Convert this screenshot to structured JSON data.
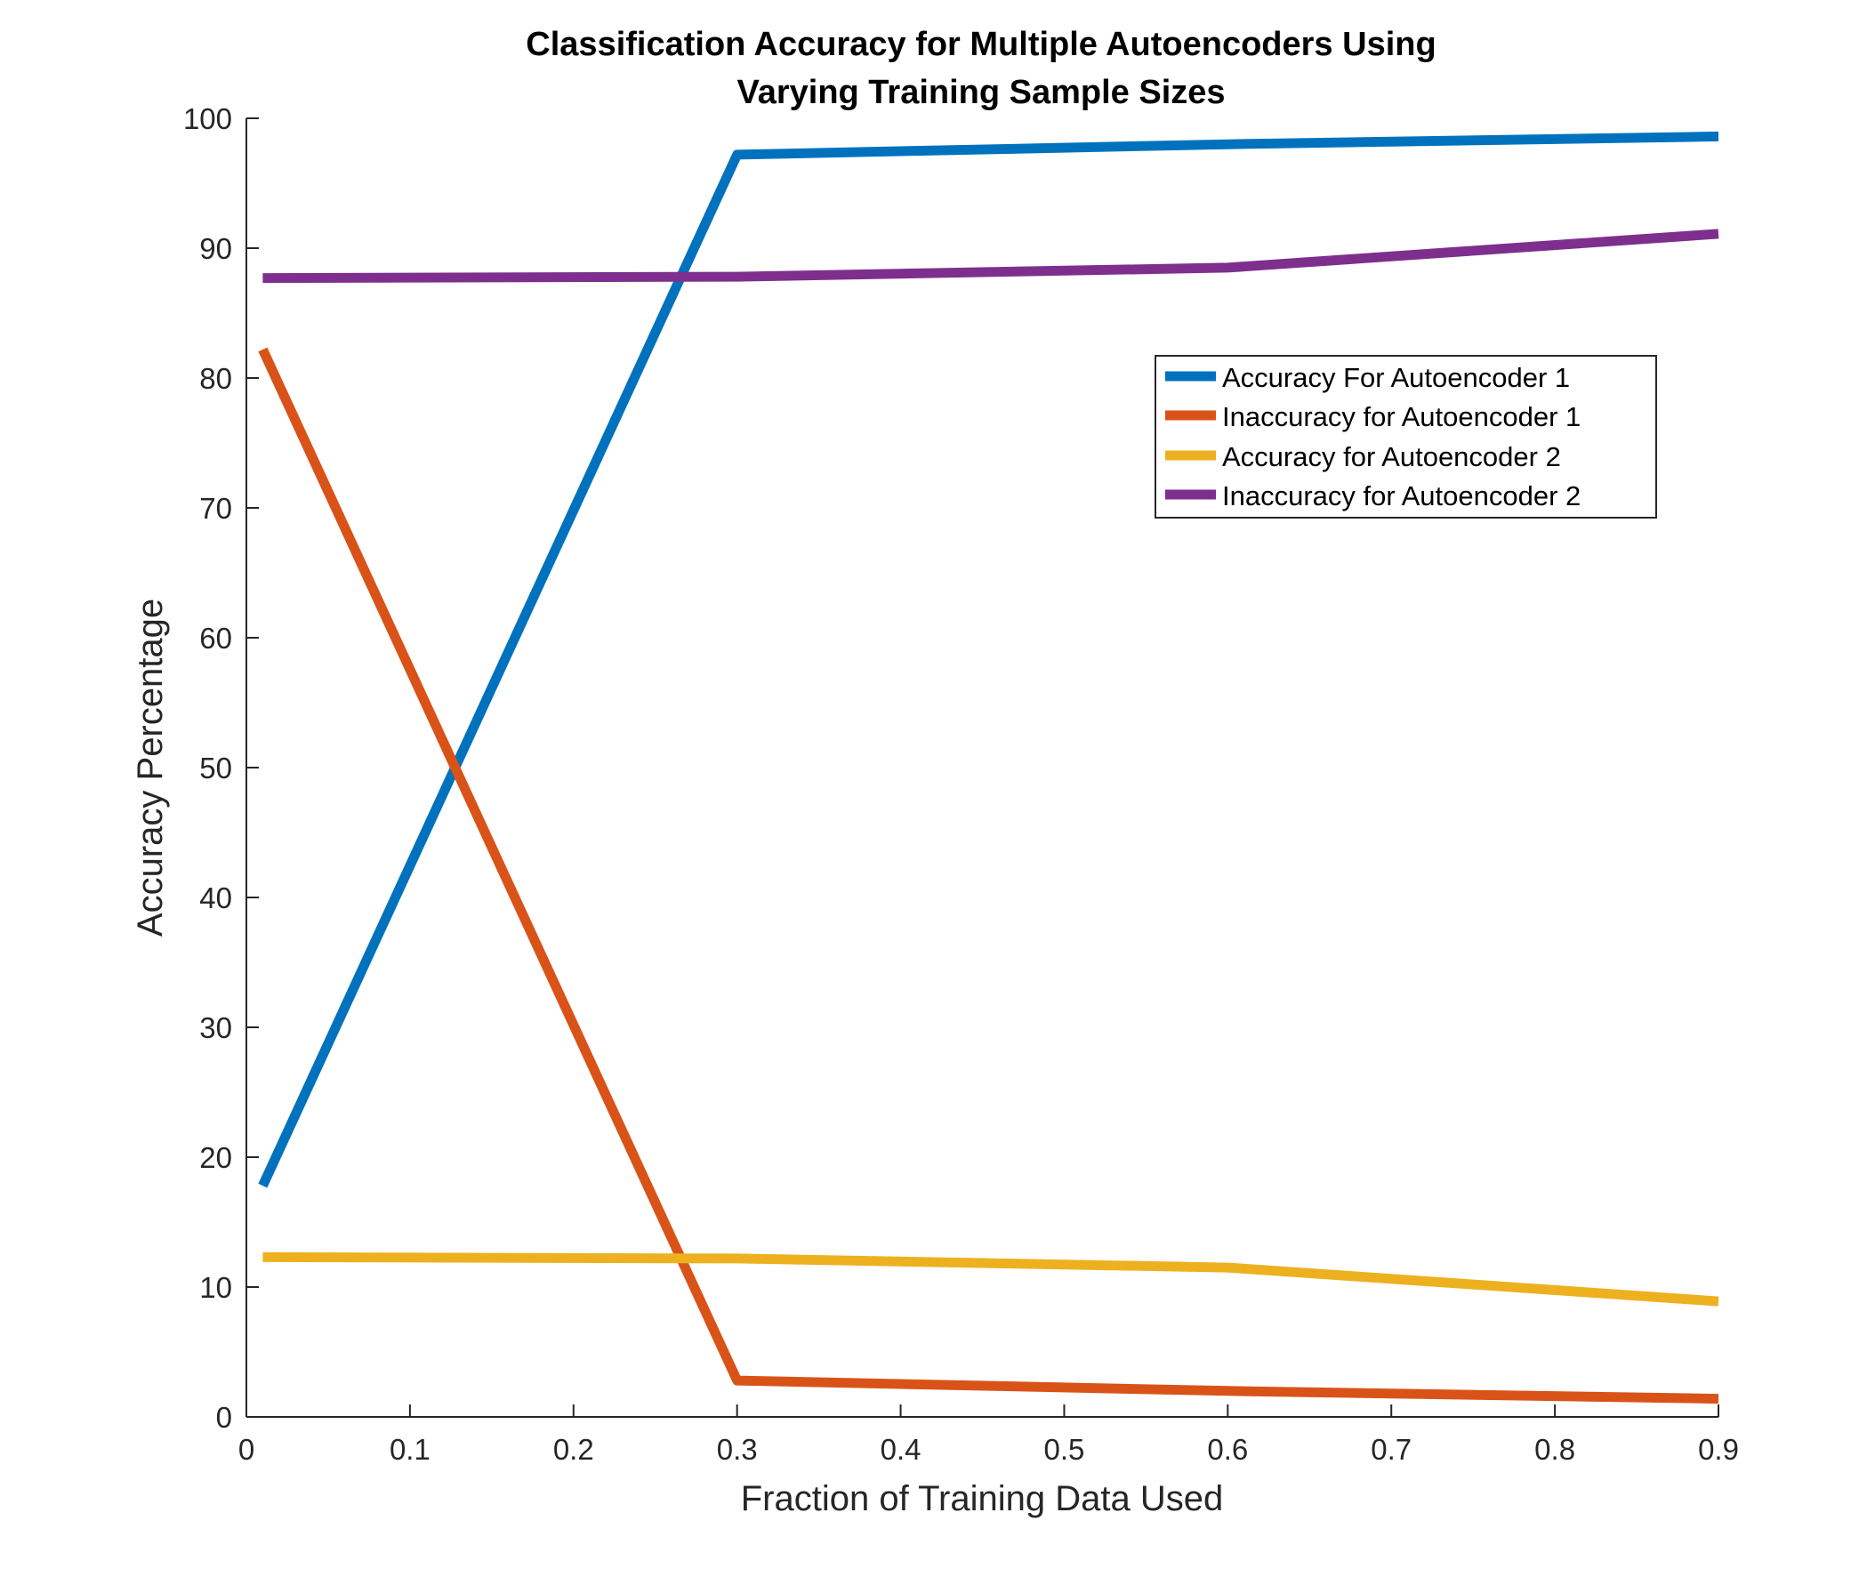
{
  "chart_data": {
    "type": "line",
    "title_lines": [
      "Classification Accuracy for Multiple Autoencoders Using",
      "Varying Training Sample Sizes"
    ],
    "xlabel": "Fraction of Training Data Used",
    "ylabel": "Accuracy Percentage",
    "xlim": [
      0,
      0.9
    ],
    "ylim": [
      0,
      100
    ],
    "xticks": [
      0,
      0.1,
      0.2,
      0.3,
      0.4,
      0.5,
      0.6,
      0.7,
      0.8,
      0.9
    ],
    "xtick_labels": [
      "0",
      "0.1",
      "0.2",
      "0.3",
      "0.4",
      "0.5",
      "0.6",
      "0.7",
      "0.8",
      "0.9"
    ],
    "yticks": [
      0,
      10,
      20,
      30,
      40,
      50,
      60,
      70,
      80,
      90,
      100
    ],
    "ytick_labels": [
      "0",
      "10",
      "20",
      "30",
      "40",
      "50",
      "60",
      "70",
      "80",
      "90",
      "100"
    ],
    "grid": false,
    "legend_position": "upper-right",
    "series": [
      {
        "name": "Accuracy For Autoencoder 1",
        "color": "#0072BD",
        "x": [
          0.01,
          0.3,
          0.6,
          0.9
        ],
        "y": [
          17.8,
          97.2,
          98.0,
          98.6
        ]
      },
      {
        "name": "Inaccuracy for Autoencoder 1",
        "color": "#D95319",
        "x": [
          0.01,
          0.3,
          0.6,
          0.9
        ],
        "y": [
          82.2,
          2.8,
          2.0,
          1.4
        ]
      },
      {
        "name": "Accuracy for Autoencoder 2",
        "color": "#EDB120",
        "x": [
          0.01,
          0.3,
          0.6,
          0.9
        ],
        "y": [
          12.3,
          12.2,
          11.5,
          8.9
        ]
      },
      {
        "name": "Inaccuracy for Autoencoder 2",
        "color": "#7E2F8E",
        "x": [
          0.01,
          0.3,
          0.6,
          0.9
        ],
        "y": [
          87.7,
          87.8,
          88.5,
          91.1
        ]
      }
    ]
  }
}
